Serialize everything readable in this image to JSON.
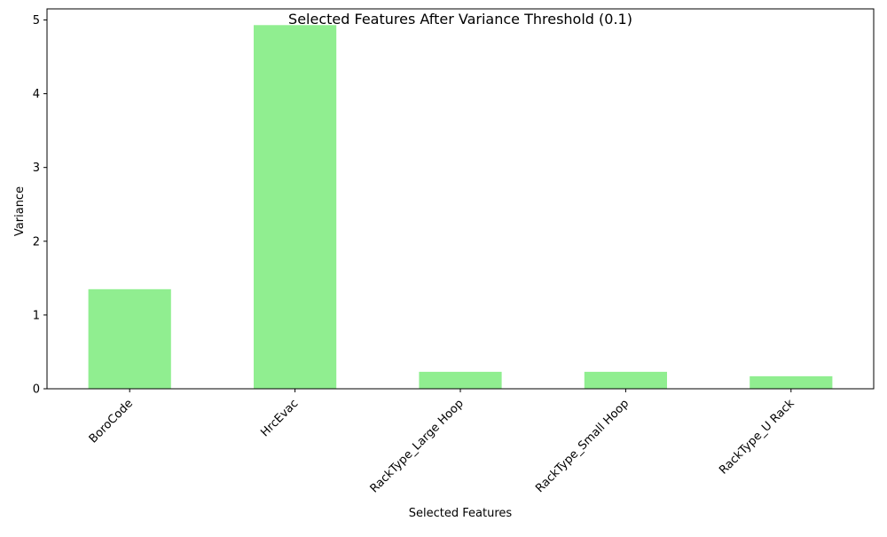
{
  "chart_data": {
    "type": "bar",
    "title": "Selected Features After Variance Threshold (0.1)",
    "xlabel": "Selected Features",
    "ylabel": "Variance",
    "categories": [
      "BoroCode",
      "HrcEvac",
      "RackType_Large Hoop",
      "RackType_Small Hoop",
      "RackType_U Rack"
    ],
    "values": [
      1.35,
      4.93,
      0.23,
      0.23,
      0.17
    ],
    "ylim": [
      0,
      5.15
    ],
    "yticks": [
      "0",
      "1",
      "2",
      "3",
      "4",
      "5"
    ],
    "grid": false,
    "legend": "none",
    "bar_color": "#90ee90"
  }
}
